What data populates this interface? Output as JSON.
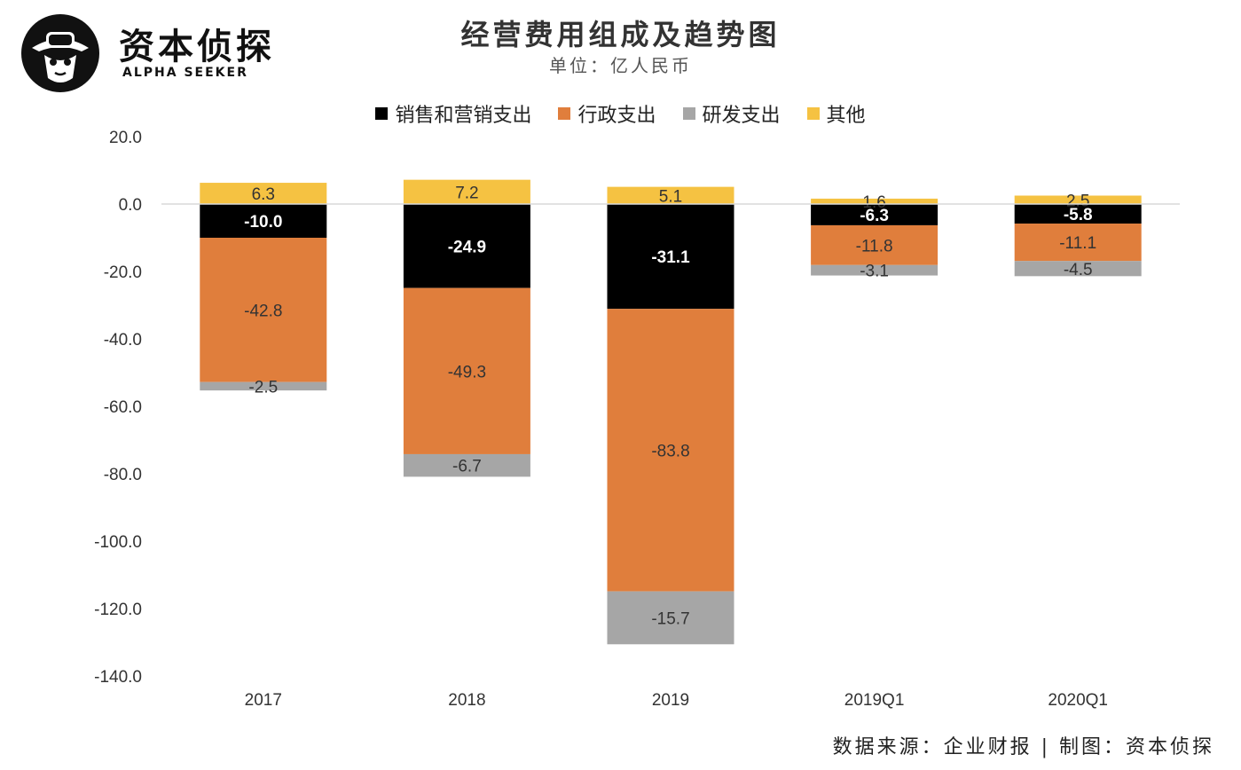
{
  "brand": {
    "name_cn": "资本侦探",
    "name_en": "ALPHA SEEKER"
  },
  "source_text": "数据来源：企业财报 | 制图：资本侦探",
  "colors": {
    "销售和营销支出": "#000000",
    "行政支出": "#E07E3C",
    "研发支出": "#A6A6A6",
    "其他": "#F5C242",
    "axis_zero": "#d9d9d9",
    "tick_text": "#333333"
  },
  "chart_data": {
    "type": "bar",
    "stacked": true,
    "title": "经营费用组成及趋势图",
    "subtitle": "单位：亿人民币",
    "categories": [
      "2017",
      "2018",
      "2019",
      "2019Q1",
      "2020Q1"
    ],
    "series": [
      {
        "name": "销售和营销支出",
        "values": [
          -10.0,
          -24.9,
          -31.1,
          -6.3,
          -5.8
        ]
      },
      {
        "name": "行政支出",
        "values": [
          -42.8,
          -49.3,
          -83.8,
          -11.8,
          -11.1
        ]
      },
      {
        "name": "研发支出",
        "values": [
          -2.5,
          -6.7,
          -15.7,
          -3.1,
          -4.5
        ]
      },
      {
        "name": "其他",
        "values": [
          6.3,
          7.2,
          5.1,
          1.6,
          2.5
        ]
      }
    ],
    "data_labels": {
      "销售和营销支出": [
        "-10.0",
        "-24.9",
        "-31.1",
        "-6.3",
        "-5.8"
      ],
      "行政支出": [
        "-42.8",
        "-49.3",
        "-83.8",
        "-11.8",
        "-11.1"
      ],
      "研发支出": [
        "-2.5",
        "-6.7",
        "-15.7",
        "-3.1",
        "-4.5"
      ],
      "其他": [
        "6.3",
        "7.2",
        "5.1",
        "1.6",
        "2.5"
      ]
    },
    "y_ticks": [
      20,
      0,
      -20,
      -40,
      -60,
      -80,
      -100,
      -120,
      -140
    ],
    "y_tick_labels": [
      "20.0",
      "0.0",
      "-20.0",
      "-40.0",
      "-60.0",
      "-80.0",
      "-100.0",
      "-120.0",
      "-140.0"
    ],
    "ylim": [
      -140,
      20
    ],
    "grid": false,
    "legend_position": "top"
  }
}
